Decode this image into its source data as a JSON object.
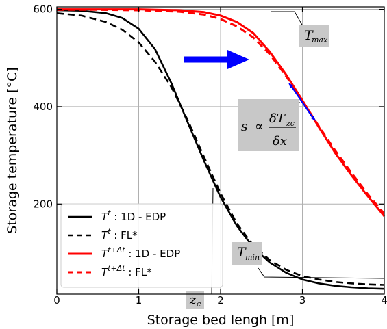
{
  "chart_data": {
    "type": "line",
    "title": "",
    "xlabel": "Storage bed lengh [m]",
    "ylabel": "Storage temperature [°C]",
    "xlim": [
      0,
      4
    ],
    "ylim": [
      15,
      605
    ],
    "grid": true,
    "legend_position": "bottom-left",
    "x_ticks": [
      0,
      1,
      2,
      3,
      4
    ],
    "y_ticks": [
      200,
      400,
      600
    ],
    "series": [
      {
        "name": "T^t : 1D - EDP",
        "color": "#000000",
        "dash": "solid",
        "x": [
          0,
          0.3,
          0.6,
          0.8,
          1.0,
          1.2,
          1.4,
          1.6,
          1.8,
          2.0,
          2.2,
          2.4,
          2.6,
          2.8,
          3.0,
          3.2,
          3.4,
          3.6,
          3.8,
          4.0
        ],
        "y": [
          598,
          597,
          592,
          582,
          560,
          518,
          448,
          367,
          288,
          214,
          155,
          111,
          80,
          59,
          45,
          37,
          32,
          29,
          27,
          26
        ]
      },
      {
        "name": "T^t : FL*",
        "color": "#000000",
        "dash": "dashed",
        "x": [
          0,
          0.3,
          0.6,
          0.8,
          1.0,
          1.2,
          1.4,
          1.6,
          1.8,
          2.0,
          2.2,
          2.4,
          2.6,
          2.8,
          3.0,
          3.2,
          3.4,
          3.6,
          3.8,
          4.0
        ],
        "y": [
          592,
          587,
          574,
          558,
          532,
          492,
          440,
          372,
          296,
          222,
          160,
          115,
          85,
          65,
          52,
          45,
          40,
          37,
          35,
          34
        ]
      },
      {
        "name": "T^{t+Δt} : 1D - EDP",
        "color": "#ff0000",
        "dash": "solid",
        "x": [
          0,
          0.5,
          1.0,
          1.5,
          1.8,
          2.0,
          2.2,
          2.4,
          2.6,
          2.8,
          3.0,
          3.2,
          3.4,
          3.6,
          3.8,
          4.0
        ],
        "y": [
          600,
          600,
          600,
          598,
          594,
          587,
          574,
          551,
          513,
          466,
          413,
          358,
          305,
          259,
          216,
          175
        ]
      },
      {
        "name": "T^{t+Δt} : FL*",
        "color": "#ff0000",
        "dash": "dashed",
        "x": [
          0,
          0.5,
          1.0,
          1.5,
          1.8,
          2.0,
          2.2,
          2.4,
          2.6,
          2.8,
          3.0,
          3.2,
          3.4,
          3.6,
          3.8,
          4.0
        ],
        "y": [
          599,
          599,
          598,
          595,
          589,
          580,
          565,
          542,
          508,
          463,
          412,
          360,
          310,
          264,
          220,
          180
        ]
      }
    ],
    "annotations": {
      "tmax": "max",
      "tmin": "min",
      "zc": "c",
      "slope": "s ∝ δT_zc / δx"
    }
  }
}
